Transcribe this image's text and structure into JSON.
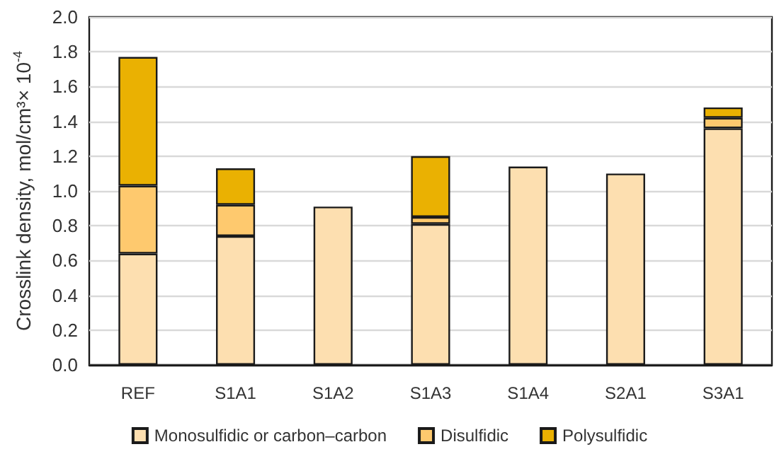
{
  "chart_data": {
    "type": "bar",
    "stacked": true,
    "ylabel": "Crosslink density, mol/cm³× 10$^{-4}$",
    "categories": [
      "REF",
      "S1A1",
      "S1A2",
      "S1A3",
      "S1A4",
      "S2A1",
      "S3A1"
    ],
    "series": [
      {
        "name": "Monosulfidic or carbon–carbon",
        "color": "#fddfb0",
        "values": [
          0.64,
          0.74,
          0.91,
          0.81,
          1.14,
          1.1,
          1.36
        ]
      },
      {
        "name": "Disulfidic",
        "color": "#fec96e",
        "values": [
          0.39,
          0.18,
          null,
          0.04,
          null,
          null,
          0.06
        ]
      },
      {
        "name": "Polysulfidic",
        "color": "#eab102",
        "values": [
          0.74,
          0.21,
          null,
          0.35,
          null,
          null,
          0.06
        ]
      }
    ],
    "ylim": [
      0,
      2
    ],
    "yticks": [
      {
        "value": 0,
        "label": "0.0"
      },
      {
        "value": 0.2,
        "label": "0.2"
      },
      {
        "value": 0.4,
        "label": "0.4"
      },
      {
        "value": 0.6,
        "label": "0.6"
      },
      {
        "value": 0.8,
        "label": "0.8"
      },
      {
        "value": 1,
        "label": "1.0"
      },
      {
        "value": 1.2,
        "label": "1.2"
      },
      {
        "value": 1.4,
        "label": "1.4"
      },
      {
        "value": 1.6,
        "label": "1.6"
      },
      {
        "value": 1.8,
        "label": "1.8"
      },
      {
        "value": 2,
        "label": "2.0"
      }
    ],
    "grid": "y",
    "legend": "bottom"
  }
}
